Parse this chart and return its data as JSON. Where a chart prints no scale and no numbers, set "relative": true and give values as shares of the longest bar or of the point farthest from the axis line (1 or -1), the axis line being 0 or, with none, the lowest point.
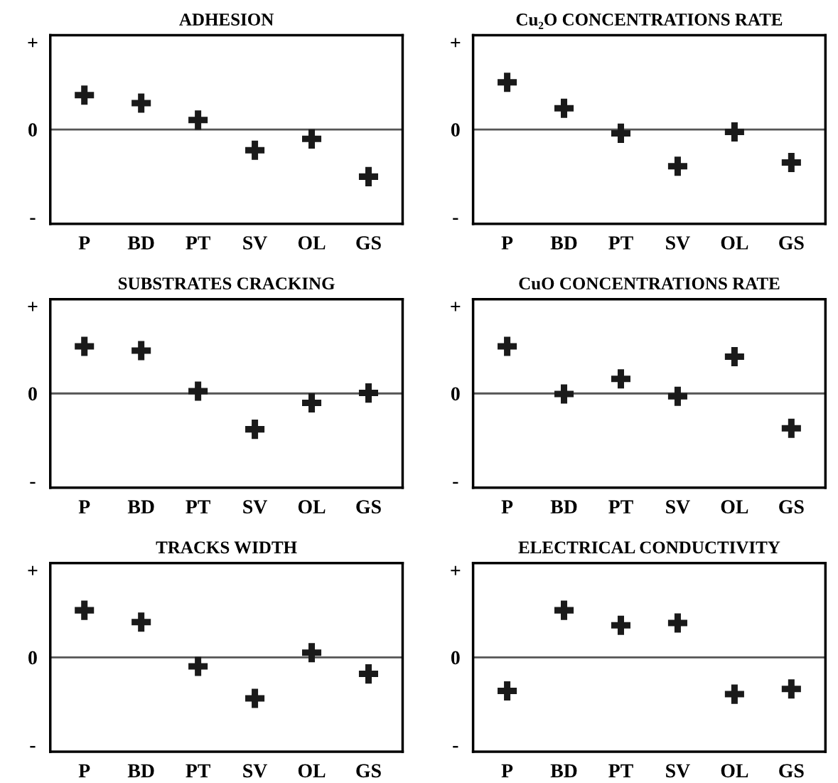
{
  "chart_data": [
    {
      "type": "scatter",
      "title": "ADHESION",
      "categories": [
        "P",
        "BD",
        "PT",
        "SV",
        "OL",
        "GS"
      ],
      "relative": true,
      "series": [
        {
          "color": "#1a1a1a",
          "values": [
            0.73,
            0.56,
            0.2,
            -0.44,
            -0.2,
            -1
          ]
        }
      ],
      "annotations": [
        "+",
        "0",
        "-"
      ],
      "marker": "cross",
      "ref_lines": [
        {
          "axis": "y",
          "value": 0,
          "color": "#555555"
        }
      ]
    },
    {
      "type": "scatter",
      "title": "Cu₂O CONCENTRATIONS RATE",
      "categories": [
        "P",
        "BD",
        "PT",
        "SV",
        "OL",
        "GS"
      ],
      "relative": true,
      "series": [
        {
          "color": "#1a1a1a",
          "values": [
            1,
            0.45,
            -0.08,
            -0.78,
            -0.05,
            -0.7
          ]
        }
      ],
      "annotations": [
        "+",
        "0",
        "-"
      ],
      "marker": "cross",
      "ref_lines": [
        {
          "axis": "y",
          "value": 0,
          "color": "#555555"
        }
      ]
    },
    {
      "type": "scatter",
      "title": "SUBSTRATES CRACKING",
      "categories": [
        "P",
        "BD",
        "PT",
        "SV",
        "OL",
        "GS"
      ],
      "relative": true,
      "series": [
        {
          "color": "#1a1a1a",
          "values": [
            1,
            0.91,
            0.05,
            -0.76,
            -0.2,
            0.01
          ]
        }
      ],
      "annotations": [
        "+",
        "0",
        "-"
      ],
      "marker": "cross",
      "ref_lines": [
        {
          "axis": "y",
          "value": 0,
          "color": "#555555"
        }
      ]
    },
    {
      "type": "scatter",
      "title": "CuO CONCENTRATIONS RATE",
      "categories": [
        "P",
        "BD",
        "PT",
        "SV",
        "OL",
        "GS"
      ],
      "relative": true,
      "series": [
        {
          "color": "#1a1a1a",
          "values": [
            1,
            -0.01,
            0.31,
            -0.06,
            0.78,
            -0.74
          ]
        }
      ],
      "annotations": [
        "+",
        "0",
        "-"
      ],
      "marker": "cross",
      "ref_lines": [
        {
          "axis": "y",
          "value": 0,
          "color": "#555555"
        }
      ]
    },
    {
      "type": "scatter",
      "title": "TRACKS WIDTH",
      "categories": [
        "P",
        "BD",
        "PT",
        "SV",
        "OL",
        "GS"
      ],
      "relative": true,
      "series": [
        {
          "color": "#1a1a1a",
          "values": [
            1,
            0.75,
            -0.19,
            -0.87,
            0.1,
            -0.35
          ]
        }
      ],
      "annotations": [
        "+",
        "0",
        "-"
      ],
      "marker": "cross",
      "ref_lines": [
        {
          "axis": "y",
          "value": 0,
          "color": "#555555"
        }
      ]
    },
    {
      "type": "scatter",
      "title": "ELECTRICAL CONDUCTIVITY",
      "categories": [
        "P",
        "BD",
        "PT",
        "SV",
        "OL",
        "GS"
      ],
      "relative": true,
      "series": [
        {
          "color": "#1a1a1a",
          "values": [
            -0.71,
            1,
            0.68,
            0.73,
            -0.78,
            -0.67
          ]
        }
      ],
      "annotations": [
        "+",
        "0",
        "-"
      ],
      "marker": "cross",
      "ref_lines": [
        {
          "axis": "y",
          "value": 0,
          "color": "#555555"
        }
      ]
    }
  ]
}
